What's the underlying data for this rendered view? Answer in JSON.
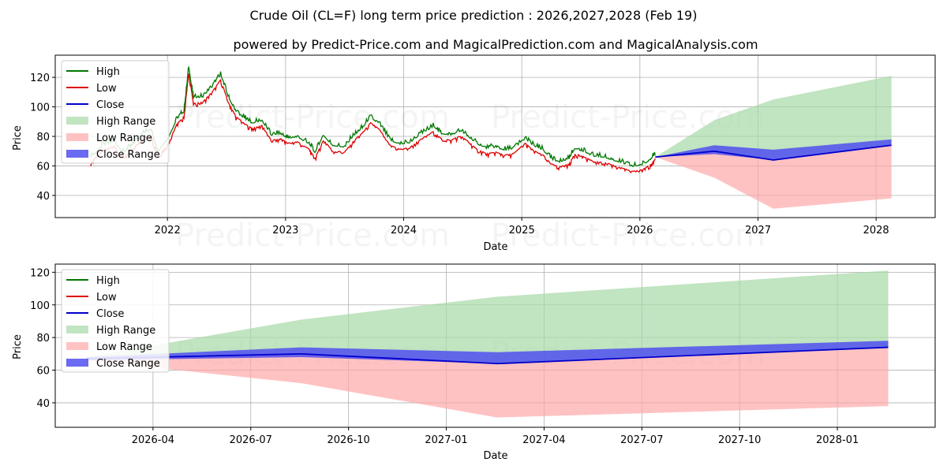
{
  "title": "Crude Oil (CL=F) long term price prediction : 2026,2027,2028 (Feb 19)",
  "subtitle": "powered by Predict-Price.com and MagicalPrediction.com and MagicalAnalysis.com",
  "watermark": "Predict-Price.com",
  "colors": {
    "high": "#007700",
    "low": "#dd0000",
    "close": "#0000cc",
    "high_range": "#a6d8a6",
    "low_range": "#ffa8a8",
    "close_range": "#5050f0",
    "grid": "#b0b0b0"
  },
  "legend": [
    "High",
    "Low",
    "Close",
    "High Range",
    "Low Range",
    "Close Range"
  ],
  "chart_data": [
    {
      "type": "line",
      "name": "top",
      "xlabel": "Date",
      "ylabel": "Price",
      "xlim": [
        2021.05,
        2028.5
      ],
      "ylim": [
        25,
        135
      ],
      "xticks": [
        2022,
        2023,
        2024,
        2025,
        2026,
        2027,
        2028
      ],
      "xticklabels": [
        "2022",
        "2023",
        "2024",
        "2025",
        "2026",
        "2027",
        "2028"
      ],
      "yticks": [
        40,
        60,
        80,
        100,
        120
      ],
      "legend_position": "upper-left",
      "history_points": [
        [
          2021.35,
          64
        ],
        [
          2021.45,
          72
        ],
        [
          2021.55,
          75
        ],
        [
          2021.62,
          67
        ],
        [
          2021.7,
          72
        ],
        [
          2021.78,
          80
        ],
        [
          2021.86,
          83
        ],
        [
          2021.92,
          68
        ],
        [
          2022.0,
          76
        ],
        [
          2022.08,
          90
        ],
        [
          2022.14,
          95
        ],
        [
          2022.18,
          125
        ],
        [
          2022.22,
          104
        ],
        [
          2022.3,
          105
        ],
        [
          2022.38,
          112
        ],
        [
          2022.45,
          120
        ],
        [
          2022.52,
          104
        ],
        [
          2022.58,
          95
        ],
        [
          2022.66,
          90
        ],
        [
          2022.72,
          87
        ],
        [
          2022.8,
          89
        ],
        [
          2022.88,
          79
        ],
        [
          2022.96,
          80
        ],
        [
          2023.02,
          77
        ],
        [
          2023.1,
          78
        ],
        [
          2023.2,
          73
        ],
        [
          2023.25,
          67
        ],
        [
          2023.32,
          79
        ],
        [
          2023.4,
          72
        ],
        [
          2023.5,
          71
        ],
        [
          2023.58,
          79
        ],
        [
          2023.65,
          84
        ],
        [
          2023.72,
          91
        ],
        [
          2023.8,
          86
        ],
        [
          2023.88,
          76
        ],
        [
          2023.96,
          73
        ],
        [
          2024.05,
          74
        ],
        [
          2024.15,
          80
        ],
        [
          2024.25,
          85
        ],
        [
          2024.32,
          80
        ],
        [
          2024.4,
          79
        ],
        [
          2024.48,
          82
        ],
        [
          2024.55,
          78
        ],
        [
          2024.62,
          73
        ],
        [
          2024.7,
          70
        ],
        [
          2024.78,
          71
        ],
        [
          2024.85,
          69
        ],
        [
          2024.93,
          70
        ],
        [
          2025.03,
          77
        ],
        [
          2025.1,
          72
        ],
        [
          2025.18,
          69
        ],
        [
          2025.25,
          63
        ],
        [
          2025.32,
          61
        ],
        [
          2025.4,
          63
        ],
        [
          2025.45,
          70
        ],
        [
          2025.52,
          68
        ],
        [
          2025.6,
          65
        ],
        [
          2025.7,
          64
        ],
        [
          2025.78,
          62
        ],
        [
          2025.86,
          60
        ],
        [
          2025.93,
          58
        ],
        [
          2026.02,
          59
        ],
        [
          2026.08,
          62
        ],
        [
          2026.13,
          66
        ]
      ],
      "forecast": {
        "x": [
          2026.13,
          2026.63,
          2027.13,
          2028.13
        ],
        "close": [
          66,
          70,
          64,
          74
        ],
        "close_range_low": [
          66,
          68,
          64,
          74
        ],
        "close_range_high": [
          66,
          74,
          71,
          78
        ],
        "high_range_high": [
          66,
          91,
          105,
          121
        ],
        "low_range_low": [
          66,
          52,
          31,
          38
        ]
      }
    },
    {
      "type": "line",
      "name": "bottom",
      "xlabel": "Date",
      "ylabel": "Price",
      "xlim": [
        2026.0,
        2028.25
      ],
      "ylim": [
        25,
        125
      ],
      "xticks": [
        2026.25,
        2026.5,
        2026.75,
        2027.0,
        2027.25,
        2027.5,
        2027.75,
        2028.0
      ],
      "xticklabels": [
        "2026-04",
        "2026-07",
        "2026-10",
        "2027-01",
        "2027-04",
        "2027-07",
        "2027-10",
        "2028-01"
      ],
      "yticks": [
        40,
        60,
        80,
        100,
        120
      ],
      "legend_position": "upper-left",
      "forecast": {
        "x": [
          2026.08,
          2026.63,
          2027.13,
          2028.13
        ],
        "close": [
          67,
          70,
          64,
          74
        ],
        "close_range_low": [
          66,
          68,
          64,
          74
        ],
        "close_range_high": [
          68,
          74,
          71,
          78
        ],
        "high_range_high": [
          68,
          91,
          105,
          121
        ],
        "low_range_low": [
          66,
          52,
          31,
          38
        ]
      }
    }
  ]
}
